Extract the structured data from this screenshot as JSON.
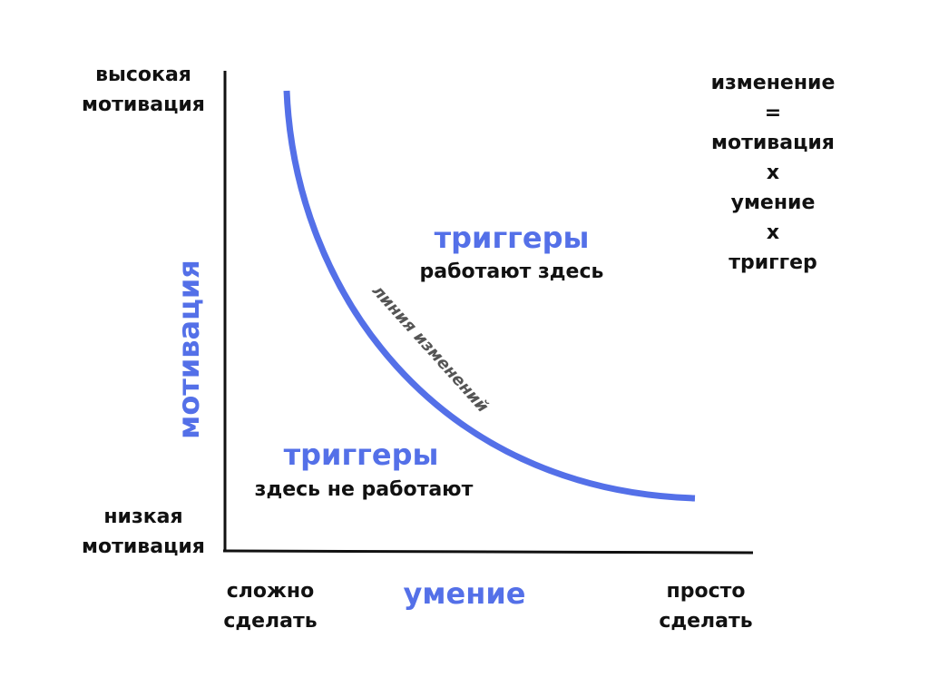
{
  "colors": {
    "accent": "#5470e8",
    "text": "#111111",
    "axis": "#111111",
    "background": "#ffffff"
  },
  "y_axis": {
    "title": "мотивация",
    "top_label": [
      "высокая",
      "мотивация"
    ],
    "bottom_label": [
      "низкая",
      "мотивация"
    ]
  },
  "x_axis": {
    "title": "умение",
    "left_label": [
      "сложно",
      "сделать"
    ],
    "right_label": [
      "просто",
      "сделать"
    ]
  },
  "curve": {
    "label": "линия изменений"
  },
  "zone_above": {
    "title": "триггеры",
    "subtitle": "работают здесь"
  },
  "zone_below": {
    "title": "триггеры",
    "subtitle": "здесь не работают"
  },
  "formula": [
    "изменение",
    "=",
    "мотивация",
    "x",
    "умение",
    "x",
    "триггер"
  ]
}
